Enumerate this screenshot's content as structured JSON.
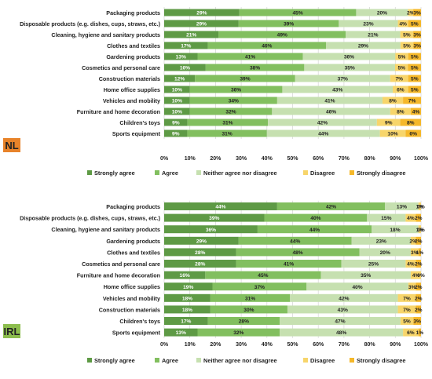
{
  "colors": {
    "strongly_agree": "#5e9a45",
    "agree": "#82bf5f",
    "neither": "#c6e0b0",
    "disagree": "#f7d56b",
    "strongly_disagree": "#f5b82a",
    "nl_badge": "#e8832a",
    "irl_badge": "#8cbd4e"
  },
  "chart_data": [
    {
      "type": "bar",
      "orientation": "horizontal",
      "stacked": true,
      "region_label": "NL",
      "categories": [
        "Packaging products",
        "Disposable products (e.g. dishes, cups, straws, etc.)",
        "Cleaning, hygiene and sanitary products",
        "Clothes and textiles",
        "Gardening products",
        "Cosmetics and personal care",
        "Construction materials",
        "Home office supplies",
        "Vehicles and mobility",
        "Furniture and home decoration",
        "Children's toys",
        "Sports equipment"
      ],
      "series": [
        {
          "name": "Strongly agree",
          "values": [
            29,
            29,
            21,
            17,
            13,
            16,
            12,
            10,
            10,
            10,
            9,
            9
          ]
        },
        {
          "name": "Agree",
          "values": [
            45,
            39,
            49,
            46,
            41,
            38,
            39,
            36,
            34,
            32,
            31,
            31
          ]
        },
        {
          "name": "Neither agree nor disagree",
          "values": [
            20,
            23,
            21,
            29,
            36,
            35,
            37,
            43,
            41,
            46,
            42,
            44
          ]
        },
        {
          "name": "Disagree",
          "values": [
            2,
            4,
            5,
            5,
            5,
            5,
            7,
            6,
            8,
            8,
            9,
            10
          ]
        },
        {
          "name": "Strongly disagree",
          "values": [
            3,
            5,
            3,
            3,
            5,
            5,
            5,
            5,
            7,
            4,
            8,
            6
          ]
        }
      ],
      "value_labels": [
        [
          "29%",
          "45%",
          "20%",
          "2%",
          "3%"
        ],
        [
          "29%",
          "39%",
          "23%",
          "4%",
          "5%"
        ],
        [
          "21%",
          "49%",
          "21%",
          "5%",
          "3%"
        ],
        [
          "17%",
          "46%",
          "29%",
          "5%",
          "3%"
        ],
        [
          "13%",
          "41%",
          "36%",
          "5%",
          "5%"
        ],
        [
          "16%",
          "38%",
          "35%",
          "5%",
          "5%"
        ],
        [
          "12%",
          "39%",
          "37%",
          "7%",
          "5%"
        ],
        [
          "10%",
          "36%",
          "43%",
          "6%",
          "5%"
        ],
        [
          "10%",
          "34%",
          "41%",
          "8%",
          "7%"
        ],
        [
          "10%",
          "32%",
          "46%",
          "8%",
          "4%"
        ],
        [
          "9%",
          "31%",
          "42%",
          "9%",
          "8%"
        ],
        [
          "9%",
          "31%",
          "44%",
          "10%",
          "6%"
        ]
      ],
      "xlim": [
        0,
        100
      ],
      "x_ticks": [
        "0%",
        "10%",
        "20%",
        "30%",
        "40%",
        "50%",
        "60%",
        "70%",
        "80%",
        "90%",
        "100%"
      ],
      "grid": true,
      "legend": "bottom"
    },
    {
      "type": "bar",
      "orientation": "horizontal",
      "stacked": true,
      "region_label": "IRL",
      "categories": [
        "Packaging products",
        "Disposable products (e.g. dishes, cups, straws, etc.)",
        "Cleaning, hygiene and sanitary products",
        "Gardening products",
        "Clothes and textiles",
        "Cosmetics and personal care",
        "Furniture and home decoration",
        "Home office supplies",
        "Vehicles and mobility",
        "Construction materials",
        "Children's toys",
        "Sports equipment"
      ],
      "series": [
        {
          "name": "Strongly agree",
          "values": [
            44,
            39,
            36,
            29,
            28,
            28,
            16,
            19,
            18,
            18,
            17,
            13
          ]
        },
        {
          "name": "Agree",
          "values": [
            42,
            40,
            44,
            44,
            48,
            41,
            45,
            37,
            31,
            30,
            28,
            32
          ]
        },
        {
          "name": "Neither agree nor disagree",
          "values": [
            13,
            15,
            18,
            23,
            20,
            25,
            35,
            40,
            42,
            43,
            47,
            48
          ]
        },
        {
          "name": "Disagree",
          "values": [
            1,
            4,
            1,
            2,
            3,
            4,
            4,
            3,
            7,
            7,
            5,
            6
          ]
        },
        {
          "name": "Strongly disagree",
          "values": [
            0,
            2,
            0,
            2,
            1,
            2,
            0,
            2,
            2,
            2,
            3,
            1
          ]
        }
      ],
      "value_labels": [
        [
          "44%",
          "42%",
          "13%",
          "1%",
          "0%"
        ],
        [
          "39%",
          "40%",
          "15%",
          "4%",
          "2%"
        ],
        [
          "36%",
          "44%",
          "18%",
          "1%",
          "0%"
        ],
        [
          "29%",
          "44%",
          "23%",
          "2%",
          "2%"
        ],
        [
          "28%",
          "48%",
          "20%",
          "3%",
          "1%"
        ],
        [
          "28%",
          "41%",
          "25%",
          "4%",
          "2%"
        ],
        [
          "16%",
          "45%",
          "35%",
          "4%",
          "0%"
        ],
        [
          "19%",
          "37%",
          "40%",
          "3%",
          "2%"
        ],
        [
          "18%",
          "31%",
          "42%",
          "7%",
          "2%"
        ],
        [
          "18%",
          "30%",
          "43%",
          "7%",
          "2%"
        ],
        [
          "17%",
          "28%",
          "47%",
          "5%",
          "3%"
        ],
        [
          "13%",
          "32%",
          "48%",
          "6%",
          "1%"
        ]
      ],
      "xlim": [
        0,
        100
      ],
      "x_ticks": [
        "0%",
        "10%",
        "20%",
        "30%",
        "40%",
        "50%",
        "60%",
        "70%",
        "80%",
        "90%",
        "100%"
      ],
      "grid": true,
      "legend": "bottom"
    }
  ]
}
